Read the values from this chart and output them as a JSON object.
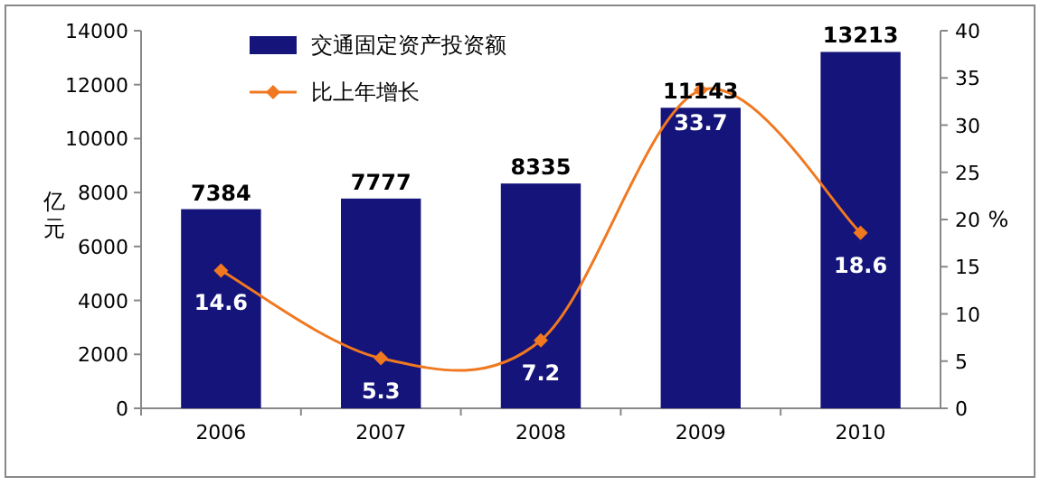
{
  "chart_data": {
    "type": "bar",
    "categories": [
      "2006",
      "2007",
      "2008",
      "2009",
      "2010"
    ],
    "ylabel": "亿元",
    "y2label": "%",
    "ylim": [
      0,
      14000
    ],
    "yticks": [
      0,
      2000,
      4000,
      6000,
      8000,
      10000,
      12000,
      14000
    ],
    "y2lim": [
      0,
      40
    ],
    "y2ticks": [
      0,
      5,
      10,
      15,
      20,
      25,
      30,
      35,
      40
    ],
    "legend": "top left",
    "data_labels": true,
    "series": [
      {
        "name": "交通固定资产投资额",
        "color": "#14147a",
        "values": [
          7384,
          7777,
          8335,
          11143,
          13213
        ]
      },
      {
        "name": "比上年增长",
        "type": "line",
        "axis": "y2",
        "color": "#f07820",
        "marker": "diamond",
        "values": [
          14.6,
          5.3,
          7.2,
          33.7,
          18.6
        ]
      }
    ]
  }
}
